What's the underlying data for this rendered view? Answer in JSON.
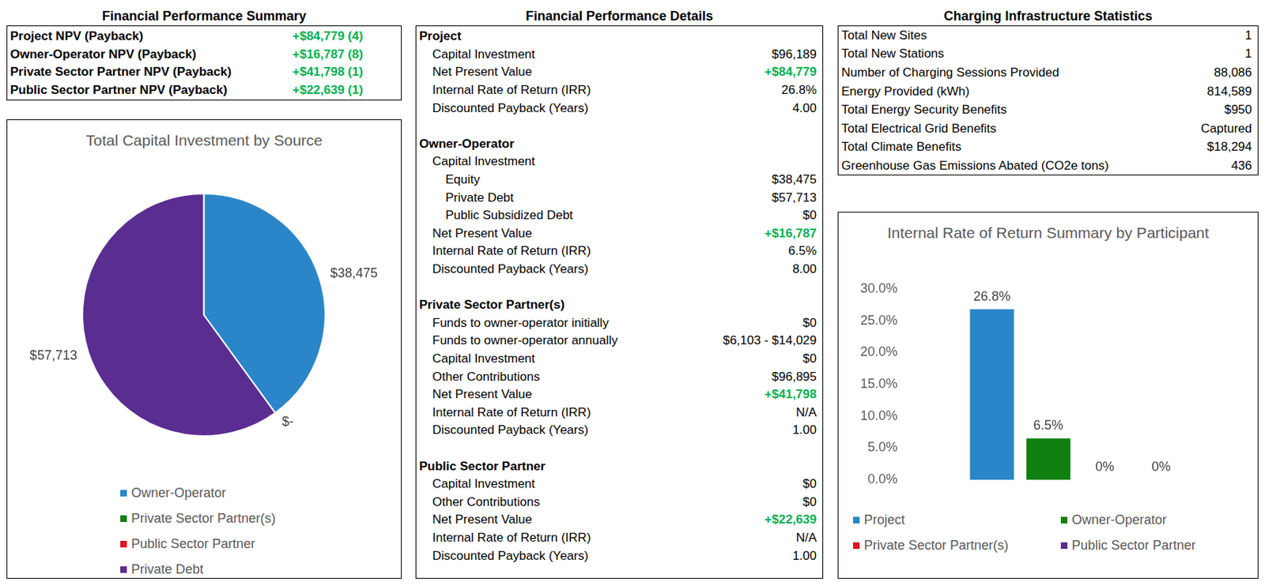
{
  "summary": {
    "title": "Financial Performance Summary",
    "rows": [
      [
        "Project NPV (Payback)",
        "+$84,779 (4)"
      ],
      [
        "Owner-Operator NPV (Payback)",
        "+$16,787 (8)"
      ],
      [
        "Private Sector Partner NPV (Payback)",
        "+$41,798 (1)"
      ],
      [
        "Public Sector Partner NPV (Payback)",
        "+$22,639 (1)"
      ]
    ]
  },
  "details": {
    "title": "Financial Performance Details",
    "sections": [
      {
        "title": "Project",
        "rows": [
          {
            "label": "Capital Investment",
            "value": "$96,189"
          },
          {
            "label": "Net Present Value",
            "value": "+$84,779"
          },
          {
            "label": "Internal Rate of Return (IRR)",
            "value": "26.8%"
          },
          {
            "label": "Discounted Payback (Years)",
            "value": "4.00"
          }
        ]
      },
      {
        "title": "Owner-Operator",
        "rows": [
          {
            "label": "Capital Investment",
            "rows": [
              {
                "label": "Equity",
                "value": "$38,475"
              },
              {
                "label": "Private Debt",
                "value": "$57,713"
              },
              {
                "label": "Public Subsidized Debt",
                "value": "$0"
              }
            ]
          },
          {
            "label": "Net Present Value",
            "value": "+$16,787"
          },
          {
            "label": "Internal Rate of Return (IRR)",
            "value": "6.5%"
          },
          {
            "label": "Discounted Payback (Years)",
            "value": "8.00"
          }
        ]
      },
      {
        "title": "Private Sector Partner(s)",
        "rows": [
          {
            "label": "Funds to owner-operator initially",
            "value": "$0"
          },
          {
            "label": "Funds to owner-operator annually",
            "value": "$6,103 - $14,029"
          },
          {
            "label": "Capital Investment",
            "value": "$0"
          },
          {
            "label": "Other Contributions",
            "value": "$96,895"
          },
          {
            "label": "Net Present Value",
            "value": "+$41,798"
          },
          {
            "label": "Internal Rate of Return (IRR)",
            "value": "N/A"
          },
          {
            "label": "Discounted Payback (Years)",
            "value": "1.00"
          }
        ]
      },
      {
        "title": "Public Sector Partner",
        "rows": [
          {
            "label": "Capital Investment",
            "value": "$0"
          },
          {
            "label": "Other Contributions",
            "value": "$0"
          },
          {
            "label": "Net Present Value",
            "value": "+$22,639"
          },
          {
            "label": "Internal Rate of Return (IRR)",
            "value": "N/A"
          },
          {
            "label": "Discounted Payback (Years)",
            "value": "1.00"
          }
        ]
      }
    ]
  },
  "statistics": {
    "title": "Charging Infrastructure Statistics",
    "rows": [
      [
        "Total New Sites",
        "1"
      ],
      [
        "Total New Stations",
        "1"
      ],
      [
        "Number of Charging Sessions Provided",
        "88,086"
      ],
      [
        "Energy Provided (kWh)",
        "814,589"
      ],
      [
        "Total Energy Security Benefits",
        "$950"
      ],
      [
        "Total Electrical Grid Benefits",
        "Captured"
      ],
      [
        "Total Climate Benefits",
        "$18,294"
      ],
      [
        "Greenhouse Gas Emissions Abated (CO2e tons)",
        "436"
      ]
    ]
  },
  "chart_data": [
    {
      "type": "pie",
      "title": "Total Capital Investment by Source",
      "categories": [
        "Owner-Operator",
        "Private Sector Partner(s)",
        "Public Sector Partner",
        "Private Debt"
      ],
      "values": [
        38475,
        0,
        0,
        57713
      ],
      "value_labels": [
        "$38,475",
        "$-",
        null,
        "$57,713"
      ],
      "colors": [
        "#2a86c8",
        "#108010",
        "#e0141e",
        "#5a2d90"
      ],
      "data_labels": true,
      "legend": "bottom"
    },
    {
      "type": "bar",
      "title": "Internal Rate of Return Summary by Participant",
      "categories": [
        null
      ],
      "series": [
        {
          "name": "Project",
          "color": "#2a86c8",
          "values": [
            26.8
          ],
          "value_labels": [
            "26.8%"
          ]
        },
        {
          "name": "Owner-Operator",
          "color": "#108010",
          "values": [
            6.5
          ],
          "value_labels": [
            "6.5%"
          ]
        },
        {
          "name": "Private Sector Partner(s)",
          "color": "#e0141e",
          "values": [
            0
          ],
          "value_labels": [
            "0%"
          ]
        },
        {
          "name": "Public Sector Partner",
          "color": "#5a2d90",
          "values": [
            0
          ],
          "value_labels": [
            "0%"
          ]
        }
      ],
      "ylim": [
        0,
        30
      ],
      "yticks": [
        {
          "value": 0,
          "label": "0.0%"
        },
        {
          "value": 5,
          "label": "5.0%"
        },
        {
          "value": 10,
          "label": "10.0%"
        },
        {
          "value": 15,
          "label": "15.0%"
        },
        {
          "value": 20,
          "label": "20.0%"
        },
        {
          "value": 25,
          "label": "25.0%"
        },
        {
          "value": 30,
          "label": "30.0%"
        }
      ],
      "grid": false,
      "data_labels": true,
      "legend": "bottom",
      "tick_labels": "y"
    }
  ]
}
